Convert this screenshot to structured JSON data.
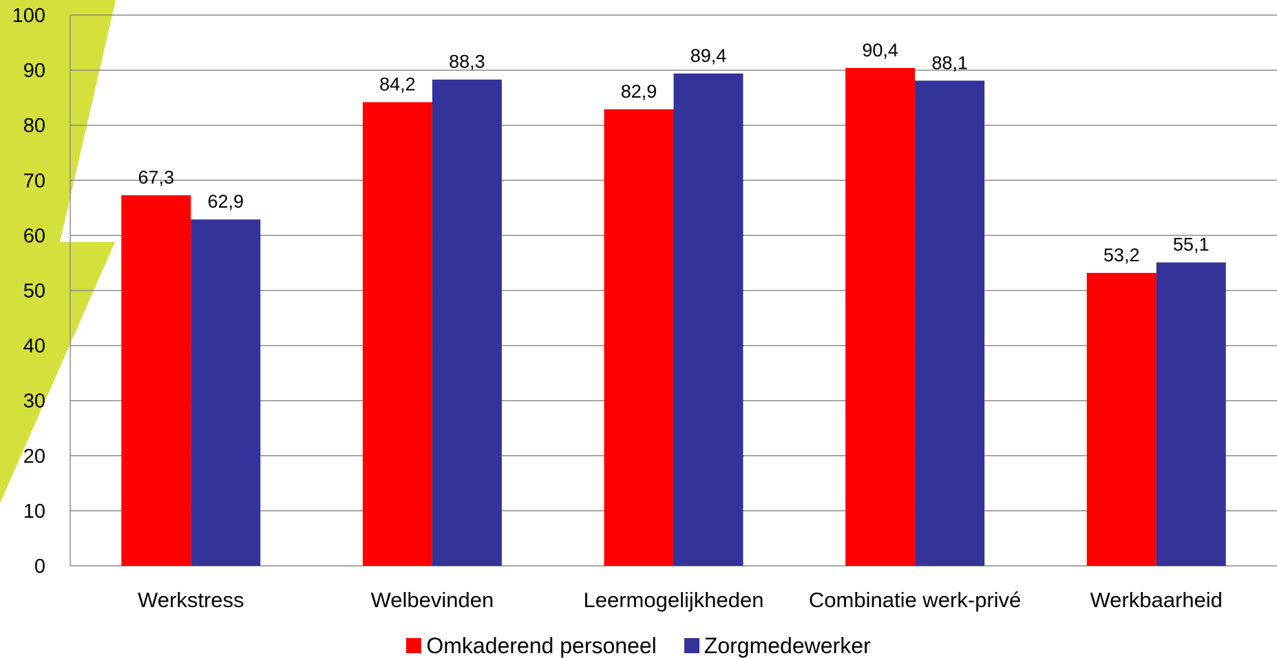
{
  "chart_data": {
    "type": "bar",
    "title": "",
    "xlabel": "",
    "ylabel": "",
    "ylim": [
      0,
      100
    ],
    "yticks": [
      0,
      10,
      20,
      30,
      40,
      50,
      60,
      70,
      80,
      90,
      100
    ],
    "grid": true,
    "legend_position": "bottom",
    "categories": [
      "Werkstress",
      "Welbevinden",
      "Leermogelijkheden",
      "Combinatie werk-privé",
      "Werkbaarheid"
    ],
    "series": [
      {
        "name": "Omkaderend personeel",
        "color": "#ff0000",
        "values": [
          67.3,
          84.2,
          82.9,
          90.4,
          53.2
        ],
        "labels": [
          "67,3",
          "84,2",
          "82,9",
          "90,4",
          "53,2"
        ]
      },
      {
        "name": "Zorgmedewerker",
        "color": "#333399",
        "values": [
          62.9,
          88.3,
          89.4,
          88.1,
          55.1
        ],
        "labels": [
          "62,9",
          "88,3",
          "89,4",
          "88,1",
          "55,1"
        ]
      }
    ]
  },
  "decor": {
    "accent_color": "#d4e03c",
    "grid_color": "#8c8c8c"
  }
}
